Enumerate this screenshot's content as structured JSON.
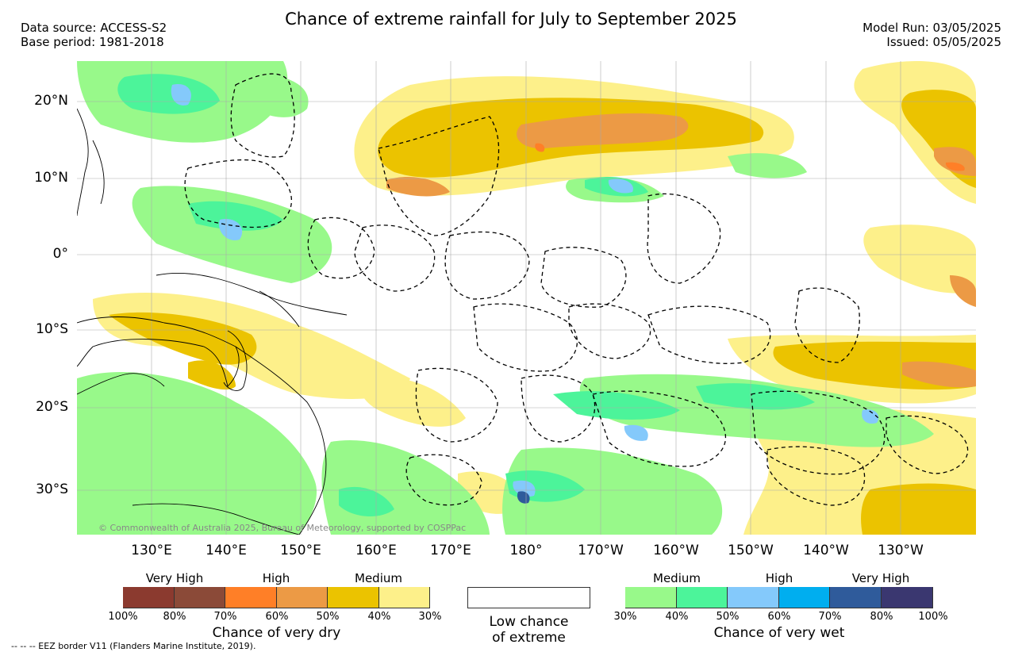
{
  "title": "Chance of extreme rainfall for July to September 2025",
  "meta_left": {
    "data_source": "Data source: ACCESS-S2",
    "base_period": "Base period: 1981-2018"
  },
  "meta_right": {
    "model_run": "Model Run: 03/05/2025",
    "issued": "Issued: 05/05/2025"
  },
  "lat_labels": [
    "20°N",
    "10°N",
    "0°",
    "10°S",
    "20°S",
    "30°S"
  ],
  "lon_labels": [
    "130°E",
    "140°E",
    "150°E",
    "160°E",
    "170°E",
    "180°",
    "170°W",
    "160°W",
    "150°W",
    "140°W",
    "130°W"
  ],
  "copyright": "© Commonwealth of Australia 2025, Bureau of Meteorology, supported by COSPPac",
  "dry_legend": {
    "headers": [
      "Very High",
      "High",
      "Medium"
    ],
    "colors": [
      "#8b3a2f",
      "#8b4a38",
      "#ff7f27",
      "#ec9a45",
      "#ebc300",
      "#fdf08a"
    ],
    "ticks": [
      "100%",
      "80%",
      "70%",
      "60%",
      "50%",
      "40%",
      "30%"
    ],
    "caption": "Chance of very dry"
  },
  "low_legend": {
    "caption_line1": "Low chance",
    "caption_line2": "of extreme"
  },
  "wet_legend": {
    "headers": [
      "Medium",
      "High",
      "Very High"
    ],
    "colors": [
      "#98f98a",
      "#4cf49a",
      "#84c9fb",
      "#00aeef",
      "#2f5b9b",
      "#3a3770"
    ],
    "ticks": [
      "30%",
      "40%",
      "50%",
      "60%",
      "70%",
      "80%",
      "100%"
    ],
    "caption": "Chance of very wet"
  },
  "footnote": "-- -- -- EEZ border V11 (Flanders Marine Institute, 2019)."
}
